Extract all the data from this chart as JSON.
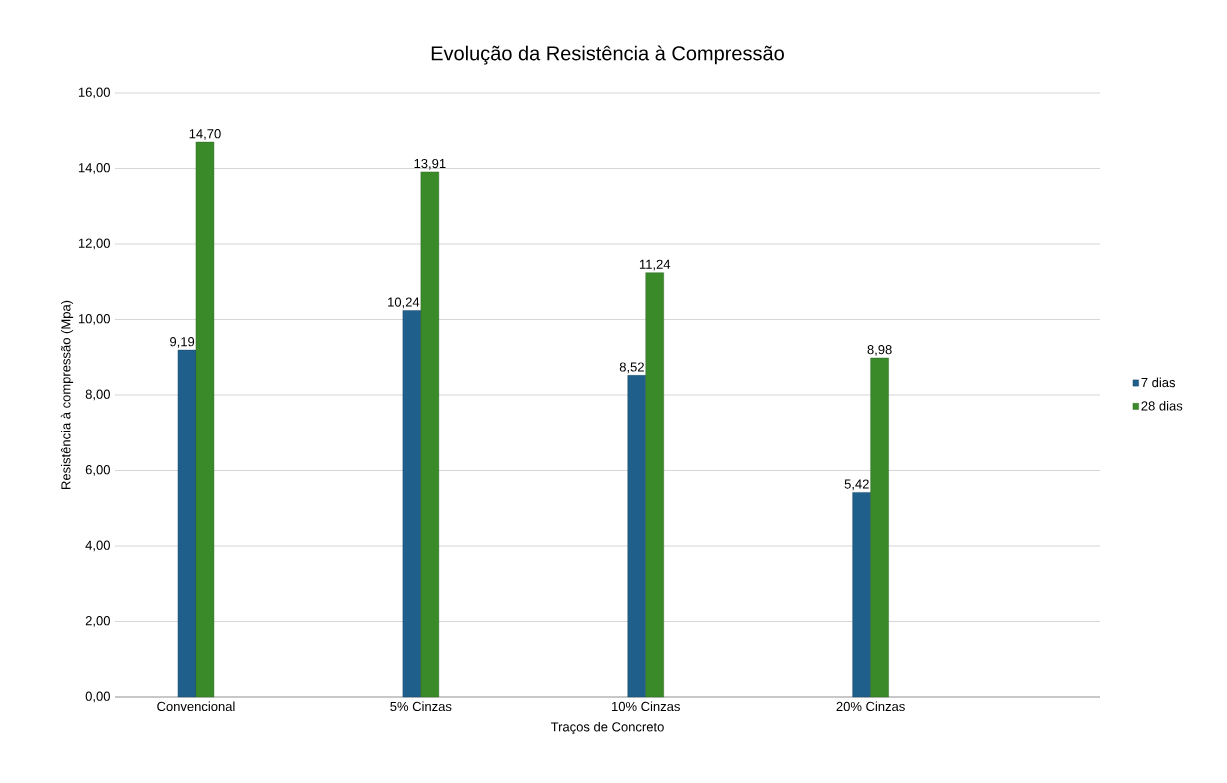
{
  "chart_data": {
    "type": "bar",
    "title": "Evolução da Resistência à Compressão",
    "xlabel": "Traços de Concreto",
    "ylabel": "Resistência à compressão (Mpa)",
    "categories": [
      "Convencional",
      "5% Cinzas",
      "10% Cinzas",
      "20% Cinzas"
    ],
    "series": [
      {
        "name": "7 dias",
        "color": "#1f5f8b",
        "values": [
          9.19,
          10.24,
          8.52,
          5.42
        ],
        "value_labels": [
          "9,19",
          "10,24",
          "8,52",
          "5,42"
        ]
      },
      {
        "name": "28 dias",
        "color": "#3a8a2a",
        "values": [
          14.7,
          13.91,
          11.24,
          8.98
        ],
        "value_labels": [
          "14,70",
          "13,91",
          "11,24",
          "8,98"
        ]
      }
    ],
    "ylim": [
      0,
      16
    ],
    "yticks": [
      {
        "value": 0,
        "label": "0,00"
      },
      {
        "value": 2,
        "label": "2,00"
      },
      {
        "value": 4,
        "label": "4,00"
      },
      {
        "value": 6,
        "label": "6,00"
      },
      {
        "value": 8,
        "label": "8,00"
      },
      {
        "value": 10,
        "label": "10,00"
      },
      {
        "value": 12,
        "label": "12,00"
      },
      {
        "value": 14,
        "label": "14,00"
      },
      {
        "value": 16,
        "label": "16,00"
      }
    ],
    "grid": "y",
    "legend": "right"
  }
}
